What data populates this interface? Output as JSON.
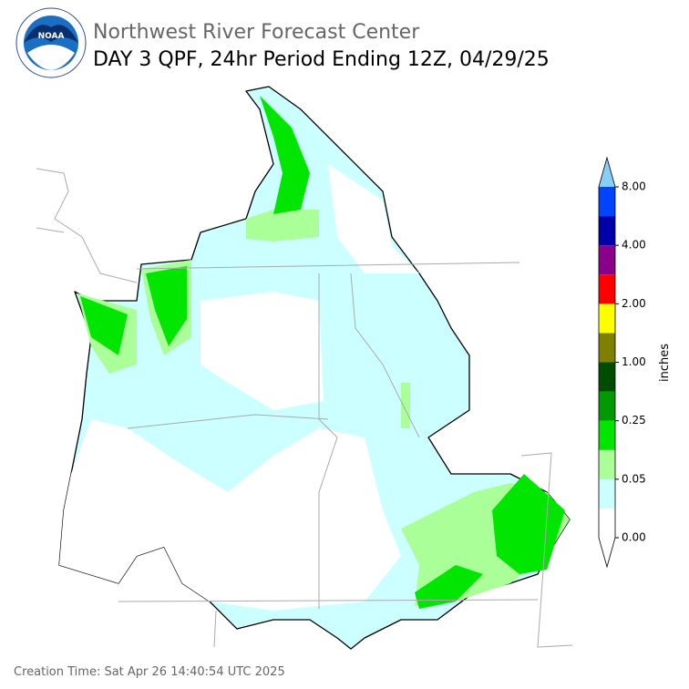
{
  "header": {
    "title": "Northwest River Forecast Center",
    "subtitle": "DAY 3 QPF, 24hr Period Ending 12Z, 04/29/25"
  },
  "colorbar": {
    "label": "inches",
    "colors": [
      "#ffffff",
      "#ccffff",
      "#aaff99",
      "#00e600",
      "#009900",
      "#004d00",
      "#808000",
      "#ffff00",
      "#ff0000",
      "#8b008b",
      "#0000aa",
      "#0044ff"
    ],
    "under_color": "#ffffff",
    "over_color": "#87cefa",
    "ticks": [
      {
        "value": 0,
        "label": "0.00"
      },
      {
        "value": 0.05,
        "label": "0.05"
      },
      {
        "value": 0.25,
        "label": "0.25"
      },
      {
        "value": 1,
        "label": "1.00"
      },
      {
        "value": 2,
        "label": "2.00"
      },
      {
        "value": 4,
        "label": "4.00"
      },
      {
        "value": 8,
        "label": "8.00"
      }
    ]
  },
  "footer": {
    "creation_time": "Creation Time: Sat Apr 26 14:40:54 UTC 2025"
  }
}
